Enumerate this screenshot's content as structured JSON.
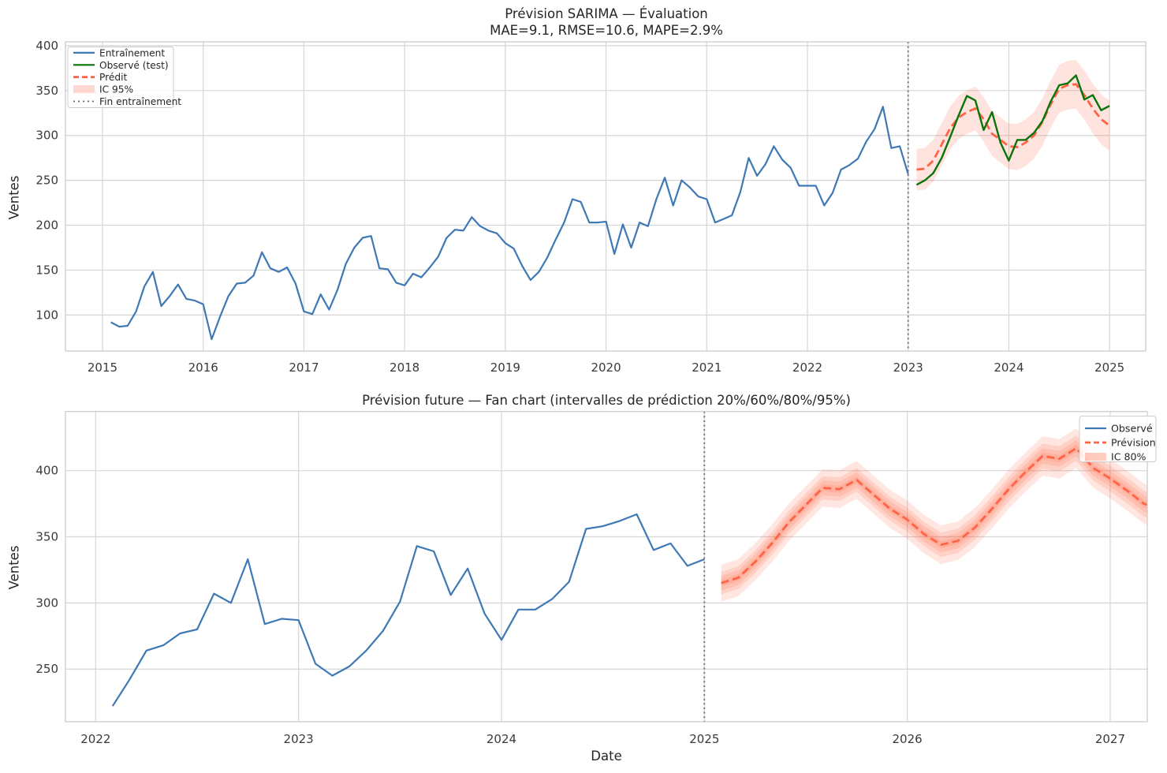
{
  "colors": {
    "train_blue": "#3e78b5",
    "observed_green": "#0a730a",
    "forecast_red": "#ff6347",
    "band_red": "#ff5d38",
    "ci_red": "#ff6347",
    "vline_gray": "#696969",
    "grid": "#d6d6d6",
    "spine": "#c9c9c9",
    "tick_text": "#3a3a3a",
    "title_text": "#262626"
  },
  "chart_data": [
    {
      "type": "line",
      "title": "Prévision SARIMA — Évaluation",
      "subtitle": "MAE=9.1, RMSE=10.6, MAPE=2.9%",
      "ylabel": "Ventes",
      "xlabel": "",
      "x_tick_values": [
        2015,
        2016,
        2017,
        2018,
        2019,
        2020,
        2021,
        2022,
        2023,
        2024,
        2025
      ],
      "x_tick_labels": [
        "2015",
        "2016",
        "2017",
        "2018",
        "2019",
        "2020",
        "2021",
        "2022",
        "2023",
        "2024",
        "2025"
      ],
      "y_tick_values": [
        100,
        150,
        200,
        250,
        300,
        350,
        400
      ],
      "y_tick_labels": [
        "100",
        "150",
        "200",
        "250",
        "300",
        "350",
        "400"
      ],
      "xlim": [
        2014.632,
        2025.359
      ],
      "ylim": [
        59.9,
        404.3
      ],
      "series": [
        {
          "id": "train",
          "label": "Entraînement",
          "type": "line",
          "style": "solid",
          "color_key": "train_blue",
          "width": 2.2,
          "x_start": 2015.0833,
          "values": [
            92,
            87,
            88,
            104,
            132,
            148,
            110,
            121,
            134,
            118,
            116,
            112,
            73,
            98,
            121,
            135,
            136,
            144,
            170,
            152,
            148,
            153,
            135,
            104,
            101,
            123,
            106,
            128,
            157,
            175,
            186,
            188,
            152,
            151,
            136,
            133,
            146,
            142,
            153,
            165,
            186,
            195,
            194,
            209,
            199,
            194,
            191,
            180,
            174,
            155,
            139,
            148,
            164,
            184,
            203,
            229,
            226,
            203,
            203,
            204,
            168,
            201,
            175,
            203,
            199,
            229,
            253,
            222,
            250,
            242,
            232,
            229,
            203,
            207,
            211,
            237,
            275,
            255,
            268,
            288,
            273,
            264,
            244,
            244,
            244,
            222,
            236,
            262,
            267,
            274,
            293,
            307,
            332,
            286,
            288,
            257
          ]
        },
        {
          "id": "ci95",
          "label": "IC 95%",
          "type": "band",
          "center_ref": "pred",
          "color_key": "ci_red",
          "alpha": 0.18,
          "x_start": 2023.0833,
          "half_widths": [
            23,
            23.2,
            23.4,
            23.7,
            23.9,
            24.1,
            24.3,
            24.5,
            24.8,
            25,
            25.2,
            25.4,
            25.6,
            25.9,
            26.1,
            26.3,
            26.5,
            26.7,
            27,
            27.2,
            27.4,
            27.6,
            27.8,
            28.1
          ]
        },
        {
          "id": "pred",
          "label": "Prédit",
          "type": "line",
          "style": "dashed",
          "color_key": "forecast_red",
          "width": 2.8,
          "x_start": 2023.0833,
          "values": [
            262,
            263,
            272,
            290,
            308,
            320,
            326,
            330,
            318,
            302,
            295,
            288,
            287,
            292,
            300,
            315,
            335,
            352,
            356,
            357,
            345,
            330,
            318,
            311
          ]
        },
        {
          "id": "test",
          "label": "Observé (test)",
          "type": "line",
          "style": "solid",
          "color_key": "observed_green",
          "width": 2.4,
          "x_start": 2023.0833,
          "values": [
            245,
            250,
            258,
            275,
            298,
            322,
            344,
            339,
            306,
            326,
            292,
            272,
            295,
            295,
            303,
            316,
            338,
            356,
            358,
            367,
            340,
            345,
            328,
            333
          ]
        },
        {
          "id": "vline",
          "label": "Fin entraînement",
          "type": "vline",
          "style": "dotted",
          "color_key": "vline_gray",
          "width": 1.8,
          "x": 2023.0
        }
      ],
      "legend": {
        "position": "upper-left",
        "items": [
          {
            "label": "Entraînement",
            "swatch": "line-solid",
            "color_key": "train_blue"
          },
          {
            "label": "Observé (test)",
            "swatch": "line-solid",
            "color_key": "observed_green"
          },
          {
            "label": "Prédit",
            "swatch": "line-dashed",
            "color_key": "forecast_red"
          },
          {
            "label": "IC 95%",
            "swatch": "patch",
            "color_key": "ci_red",
            "alpha": 0.25
          },
          {
            "label": "Fin entraînement",
            "swatch": "line-dotted",
            "color_key": "vline_gray"
          }
        ]
      }
    },
    {
      "type": "line",
      "title": "Prévision future — Fan chart (intervalles de prédiction 20%/60%/80%/95%)",
      "subtitle": "",
      "ylabel": "Ventes",
      "xlabel": "Date",
      "x_tick_values": [
        2022,
        2023,
        2024,
        2025,
        2026,
        2027
      ],
      "x_tick_labels": [
        "2022",
        "2023",
        "2024",
        "2025",
        "2026",
        "2027"
      ],
      "y_tick_values": [
        250,
        300,
        350,
        400
      ],
      "y_tick_labels": [
        "250",
        "300",
        "350",
        "400"
      ],
      "xlim": [
        2021.851,
        2027.183
      ],
      "ylim": [
        210.2,
        444.7
      ],
      "series": [
        {
          "id": "obs",
          "label": "Observé",
          "type": "line",
          "style": "solid",
          "color_key": "train_blue",
          "width": 2.2,
          "x_start": 2022.0833,
          "values": [
            222,
            242,
            264,
            268,
            277,
            280,
            307,
            300,
            333,
            284,
            288,
            287,
            254,
            245,
            252,
            264,
            279,
            301,
            343,
            339,
            306,
            326,
            292,
            272,
            295,
            295,
            303,
            316,
            356,
            358,
            362,
            367,
            340,
            345,
            328,
            333
          ]
        },
        {
          "id": "fan95",
          "label": "IC 95%",
          "type": "band",
          "center_ref": "forecast",
          "color_key": "band_red",
          "alpha": 0.155,
          "x_start": 2025.0833,
          "half_widths": [
            13.9,
            14,
            14,
            14.1,
            14.1,
            14.2,
            14.2,
            14.3,
            14.3,
            14.4,
            14.4,
            14.5,
            14.5,
            14.6,
            14.6,
            14.7,
            14.7,
            14.8,
            14.8,
            14.9,
            14.9,
            15,
            15,
            15.1,
            15.1,
            15.2,
            15.2
          ]
        },
        {
          "id": "fan80",
          "label": "IC 80%",
          "type": "band",
          "center_ref": "forecast",
          "color_key": "band_red",
          "alpha": 0.155,
          "x_start": 2025.0833,
          "half_widths": [
            8.5,
            8.6,
            8.6,
            8.7,
            8.7,
            8.8,
            8.8,
            8.9,
            8.9,
            9,
            9,
            9.1,
            9.1,
            9.2,
            9.2,
            9.3,
            9.3,
            9.4,
            9.4,
            9.5,
            9.5,
            9.6,
            9.6,
            9.7,
            9.7,
            9.8,
            9.8
          ]
        },
        {
          "id": "fan60",
          "label": "IC 60%",
          "type": "band",
          "center_ref": "forecast",
          "color_key": "band_red",
          "alpha": 0.155,
          "x_start": 2025.0833,
          "half_widths": [
            5.6,
            5.6,
            5.6,
            5.6,
            5.6,
            5.7,
            5.7,
            5.7,
            5.7,
            5.7,
            5.8,
            5.8,
            5.8,
            5.8,
            5.8,
            5.9,
            5.9,
            5.9,
            5.9,
            5.9,
            6,
            6,
            6,
            6,
            6,
            6.1,
            6.1
          ]
        },
        {
          "id": "fan20",
          "label": "IC 20%",
          "type": "band",
          "center_ref": "forecast",
          "color_key": "band_red",
          "alpha": 0.155,
          "x_start": 2025.0833,
          "half_widths": [
            2.5,
            2.5,
            2.5,
            2.5,
            2.5,
            2.5,
            2.6,
            2.6,
            2.6,
            2.6,
            2.6,
            2.6,
            2.6,
            2.6,
            2.7,
            2.7,
            2.7,
            2.7,
            2.7,
            2.7,
            2.7,
            2.8,
            2.8,
            2.8,
            2.8,
            2.8,
            2.8
          ]
        },
        {
          "id": "forecast",
          "label": "Prévision",
          "type": "line",
          "style": "dashed",
          "color_key": "forecast_red",
          "width": 2.8,
          "x_start": 2025.0833,
          "values": [
            315,
            319,
            331,
            345,
            361,
            374,
            387,
            386,
            393,
            382,
            371,
            363,
            352,
            344,
            347,
            357,
            371,
            386,
            399,
            411,
            409,
            417,
            402,
            394,
            385,
            375,
            371
          ]
        },
        {
          "id": "vline2",
          "label": "",
          "type": "vline",
          "style": "dotted",
          "color_key": "vline_gray",
          "width": 1.8,
          "x": 2025.0
        }
      ],
      "legend": {
        "position": "upper-right",
        "items": [
          {
            "label": "Observé",
            "swatch": "line-solid",
            "color_key": "train_blue"
          },
          {
            "label": "Prévision",
            "swatch": "line-dashed",
            "color_key": "forecast_red"
          },
          {
            "label": "IC 80%",
            "swatch": "patch",
            "color_key": "band_red",
            "alpha": 0.3
          }
        ]
      }
    }
  ]
}
